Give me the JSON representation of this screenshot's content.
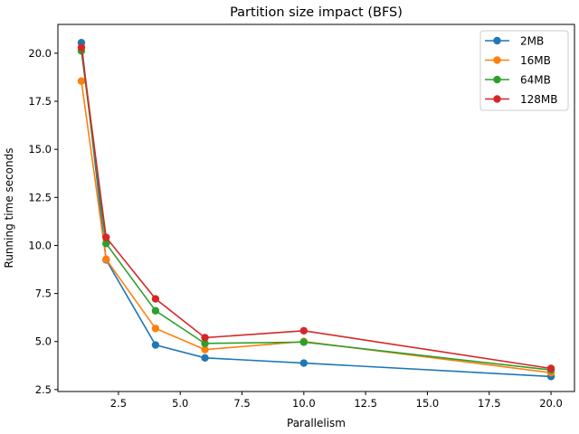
{
  "chart_data": {
    "type": "line",
    "title": "Partition size impact (BFS)",
    "xlabel": "Parallelism",
    "ylabel": "Running time seconds",
    "xlim": [
      0.05,
      20.95
    ],
    "ylim": [
      2.4,
      21.5
    ],
    "xticks": [
      2.5,
      5.0,
      7.5,
      10.0,
      12.5,
      15.0,
      17.5,
      20.0
    ],
    "yticks": [
      2.5,
      5.0,
      7.5,
      10.0,
      12.5,
      15.0,
      17.5,
      20.0
    ],
    "grid": false,
    "legend_position": "top-right",
    "marker": "circle",
    "x": [
      1,
      2,
      4,
      6,
      10,
      20
    ],
    "series": [
      {
        "name": "2MB",
        "color": "#1f77b4",
        "values": [
          20.55,
          9.25,
          4.82,
          4.15,
          3.88,
          3.18
        ]
      },
      {
        "name": "16MB",
        "color": "#ff7f0e",
        "values": [
          18.55,
          9.28,
          5.68,
          4.58,
          5.0,
          3.38
        ]
      },
      {
        "name": "64MB",
        "color": "#2ca02c",
        "values": [
          20.12,
          10.1,
          6.6,
          4.9,
          4.97,
          3.52
        ]
      },
      {
        "name": "128MB",
        "color": "#d62728",
        "values": [
          20.3,
          10.42,
          7.22,
          5.2,
          5.56,
          3.6
        ]
      }
    ]
  }
}
